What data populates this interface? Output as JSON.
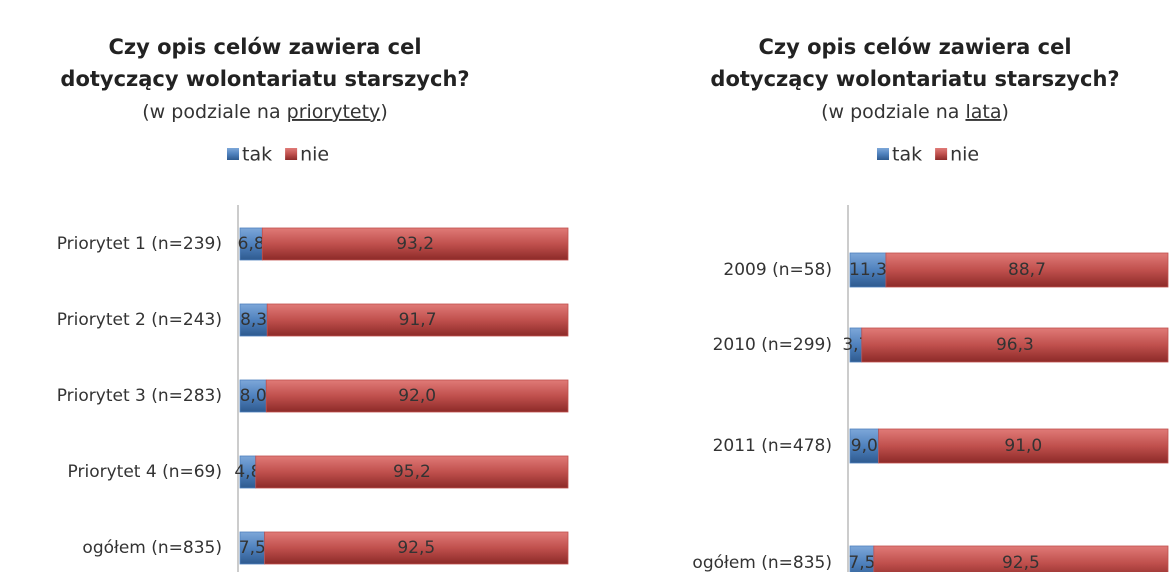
{
  "chart_data": [
    {
      "type": "bar",
      "orientation": "horizontal",
      "stacked": true,
      "title": [
        "Czy opis celów zawiera cel",
        "dotyczący wolontariatu starszych?"
      ],
      "subtitle": [
        "(w podziale na ",
        "priorytety",
        ")"
      ],
      "categories": [
        "Priorytet 1 (n=239)",
        "Priorytet 2 (n=243)",
        "Priorytet 3 (n=283)",
        "Priorytet 4 (n=69)",
        "ogółem (n=835)"
      ],
      "xlim": [
        0,
        100
      ],
      "series": [
        {
          "name": "tak",
          "color": "#4f81bd",
          "values": [
            6.8,
            8.3,
            8.0,
            4.8,
            7.5
          ],
          "value_labels": [
            "6,8",
            "8,3",
            "8,0",
            "4,8",
            "7,5"
          ]
        },
        {
          "name": "nie",
          "color": "#c0504d",
          "values": [
            93.2,
            91.7,
            92.0,
            95.2,
            92.5
          ],
          "value_labels": [
            "93,2",
            "91,7",
            "92,0",
            "95,2",
            "92,5"
          ]
        }
      ]
    },
    {
      "type": "bar",
      "orientation": "horizontal",
      "stacked": true,
      "title": [
        "Czy opis celów zawiera cel",
        "dotyczący wolontariatu starszych?"
      ],
      "subtitle": [
        "(w podziale na ",
        "lata",
        ")"
      ],
      "categories": [
        "2009 (n=58)",
        "2010 (n=299)",
        "2011 (n=478)",
        "ogółem (n=835)"
      ],
      "xlim": [
        0,
        100
      ],
      "series": [
        {
          "name": "tak",
          "color": "#4f81bd",
          "values": [
            11.3,
            3.7,
            9.0,
            7.5
          ],
          "value_labels": [
            "11,3",
            "3,7",
            "9,0",
            "7,5"
          ]
        },
        {
          "name": "nie",
          "color": "#c0504d",
          "values": [
            88.7,
            96.3,
            91.0,
            92.5
          ],
          "value_labels": [
            "88,7",
            "96,3",
            "91,0",
            "92,5"
          ]
        }
      ]
    }
  ]
}
